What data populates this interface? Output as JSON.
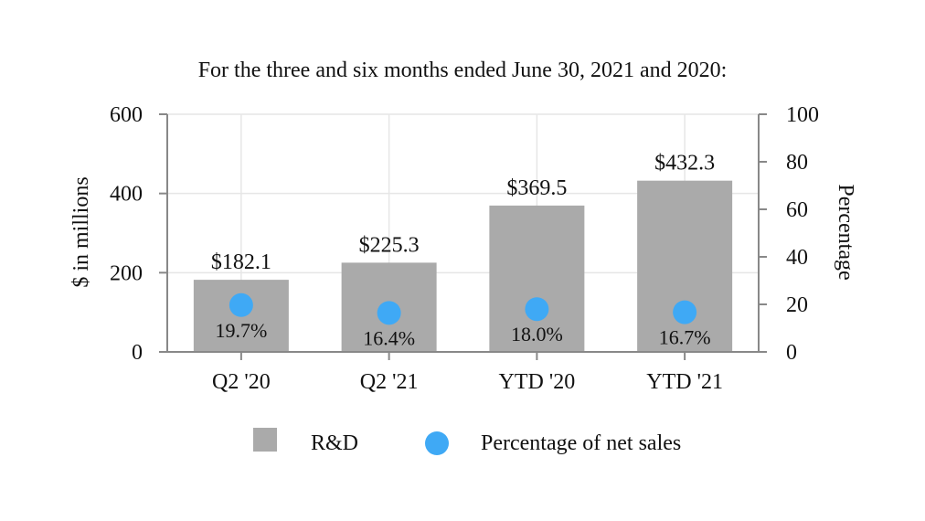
{
  "chart_data": {
    "type": "bar",
    "title": "For the three and six months ended June 30, 2021 and 2020:",
    "categories": [
      "Q2 '20",
      "Q2 '21",
      "YTD '20",
      "YTD '21"
    ],
    "series": [
      {
        "name": "R&D",
        "axis": "left",
        "kind": "bar",
        "values": [
          182.1,
          225.3,
          369.5,
          432.3
        ],
        "labels": [
          "$182.1",
          "$225.3",
          "$369.5",
          "$432.3"
        ]
      },
      {
        "name": "Percentage of net sales",
        "axis": "right",
        "kind": "scatter",
        "values": [
          19.7,
          16.4,
          18.0,
          16.7
        ],
        "labels": [
          "19.7%",
          "16.4%",
          "18.0%",
          "16.7%"
        ]
      }
    ],
    "ylabel": "$ in millions",
    "ylabel_right": "Percentage",
    "ylim": [
      0,
      600
    ],
    "yticks": [
      "0",
      "200",
      "400",
      "600"
    ],
    "ylim_right": [
      0,
      100
    ],
    "yticks_right": [
      "0",
      "20",
      "40",
      "60",
      "80",
      "100"
    ],
    "grid": true,
    "legend_position": "bottom"
  },
  "colors": {
    "bar": "#aaaaaa",
    "marker": "#3fa9f5",
    "grid": "#e6e6e6",
    "axis": "#888888"
  }
}
